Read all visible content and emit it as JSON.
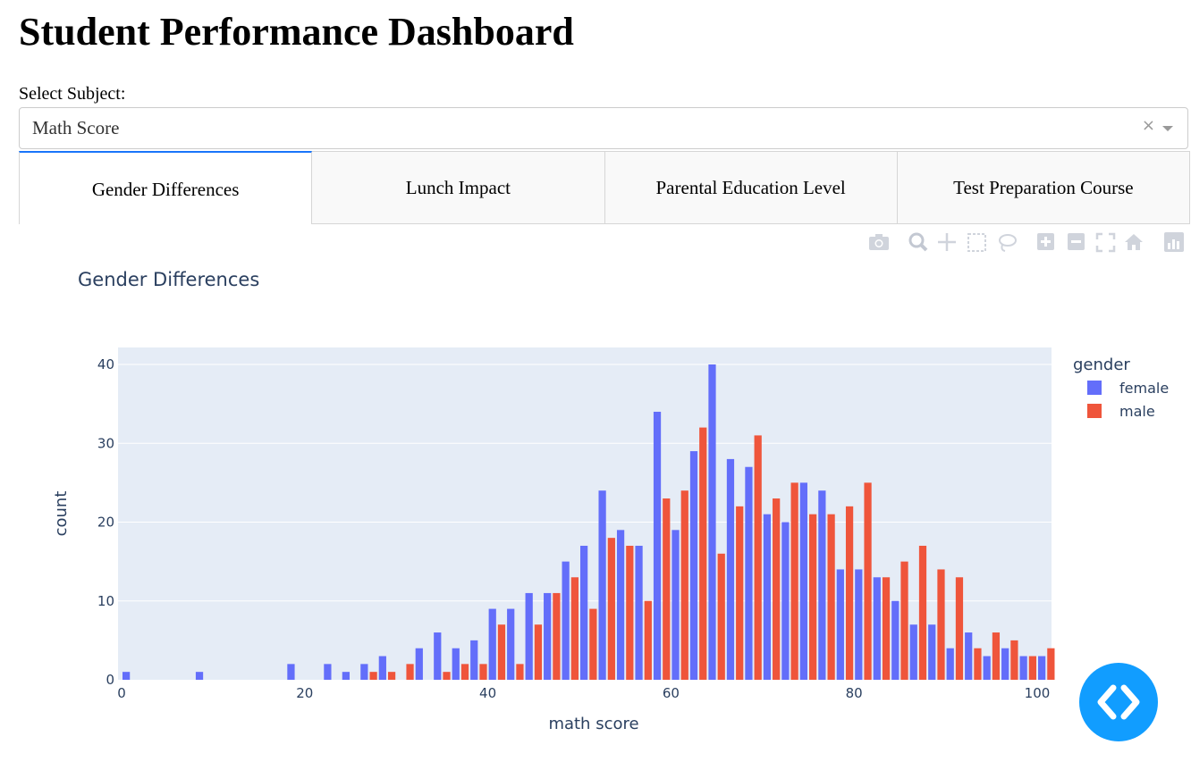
{
  "page": {
    "title": "Student Performance Dashboard"
  },
  "subject_select": {
    "label": "Select Subject:",
    "value": "Math Score",
    "clear_symbol": "×"
  },
  "tabs": [
    {
      "label": "Gender Differences",
      "selected": true
    },
    {
      "label": "Lunch Impact",
      "selected": false
    },
    {
      "label": "Parental Education Level",
      "selected": false
    },
    {
      "label": "Test Preparation Course",
      "selected": false
    }
  ],
  "modebar": [
    "camera-icon",
    "zoom-icon",
    "pan-icon",
    "box-select-icon",
    "lasso-icon",
    "zoom-in-icon",
    "zoom-out-icon",
    "autoscale-icon",
    "reset-axes-icon",
    "plotly-logo-icon"
  ],
  "colors": {
    "female": "#636efa",
    "male": "#ef553b",
    "plot_bg": "#e5ecf6",
    "accent": "#119dff",
    "tab_accent": "#1975fa"
  },
  "chart_data": {
    "type": "bar",
    "title": "Gender Differences",
    "xlabel": "math score",
    "ylabel": "count",
    "xlim": [
      0,
      101
    ],
    "ylim": [
      0,
      42
    ],
    "xticks": [
      0,
      20,
      40,
      60,
      80,
      100
    ],
    "yticks": [
      0,
      10,
      20,
      30,
      40
    ],
    "grid": true,
    "legend": {
      "title": "gender",
      "position": "right"
    },
    "bin_width": 2,
    "bin_starts": [
      0,
      2,
      4,
      6,
      8,
      10,
      12,
      14,
      16,
      18,
      20,
      22,
      24,
      26,
      28,
      30,
      32,
      34,
      36,
      38,
      40,
      42,
      44,
      46,
      48,
      50,
      52,
      54,
      56,
      58,
      60,
      62,
      64,
      66,
      68,
      70,
      72,
      74,
      76,
      78,
      80,
      82,
      84,
      86,
      88,
      90,
      92,
      94,
      96,
      98,
      100
    ],
    "series": [
      {
        "name": "female",
        "values": [
          1,
          0,
          0,
          0,
          1,
          0,
          0,
          0,
          0,
          2,
          0,
          2,
          1,
          2,
          3,
          0,
          4,
          6,
          4,
          5,
          9,
          9,
          11,
          11,
          15,
          17,
          24,
          19,
          17,
          34,
          19,
          29,
          40,
          28,
          27,
          21,
          20,
          25,
          24,
          14,
          14,
          13,
          10,
          7,
          7,
          4,
          6,
          3,
          4,
          3,
          3
        ]
      },
      {
        "name": "male",
        "values": [
          0,
          0,
          0,
          0,
          0,
          0,
          0,
          0,
          0,
          0,
          0,
          0,
          0,
          1,
          1,
          2,
          0,
          1,
          2,
          2,
          7,
          2,
          7,
          11,
          13,
          9,
          18,
          17,
          10,
          23,
          24,
          32,
          16,
          22,
          31,
          23,
          25,
          21,
          21,
          22,
          25,
          13,
          15,
          17,
          14,
          13,
          4,
          6,
          5,
          3,
          4
        ]
      }
    ]
  }
}
